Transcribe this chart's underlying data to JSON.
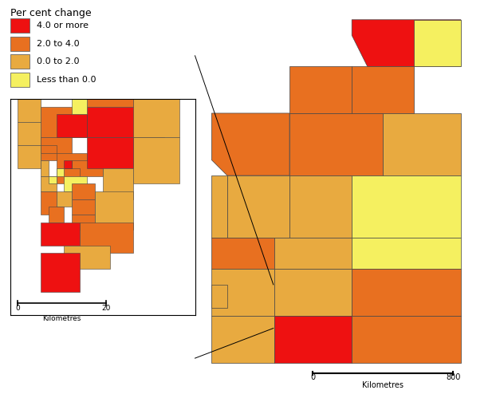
{
  "legend_title": "Per cent change",
  "legend_labels": [
    "4.0 or more",
    "2.0 to 4.0",
    "0.0 to 2.0",
    "Less than 0.0"
  ],
  "legend_colors": [
    "#ee1111",
    "#e87020",
    "#e8aa40",
    "#f5f060"
  ],
  "background_color": "#ffffff",
  "border_color": "#444444",
  "inset_scale_ticks": [
    "0",
    "20"
  ],
  "main_scale_ticks": [
    "0",
    "800"
  ],
  "scale_label": "Kilometres"
}
